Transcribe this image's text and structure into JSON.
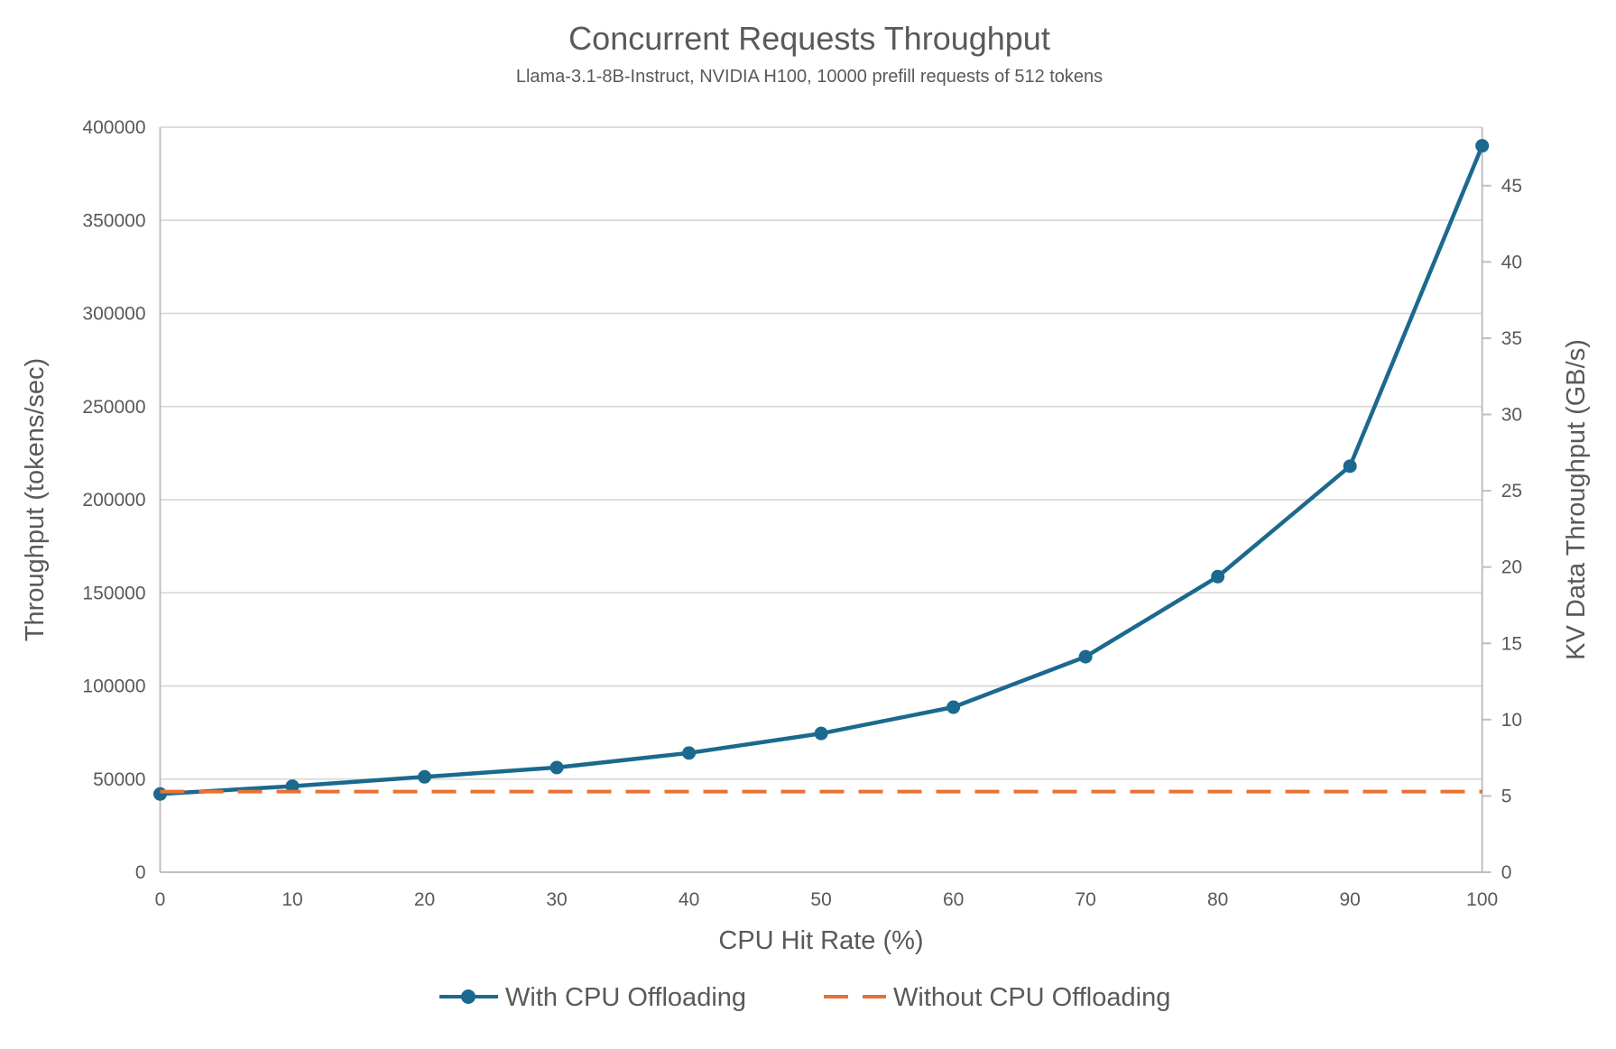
{
  "header": {
    "title": "Concurrent Requests Throughput",
    "subtitle": "Llama-3.1-8B-Instruct, NVIDIA H100, 10000 prefill requests of 512 tokens"
  },
  "chart_data": {
    "type": "line",
    "title": "Concurrent Requests Throughput",
    "subtitle": "Llama-3.1-8B-Instruct, NVIDIA H100, 10000 prefill requests of 512 tokens",
    "xlabel": "CPU Hit Rate (%)",
    "ylabel_left": "Throughput (tokens/sec)",
    "ylabel_right": "KV Data Throughput (GB/s)",
    "x": [
      0,
      10,
      20,
      30,
      40,
      50,
      60,
      70,
      80,
      90,
      100
    ],
    "xtick_labels": [
      "0",
      "10",
      "20",
      "30",
      "40",
      "50",
      "60",
      "70",
      "80",
      "90",
      "100"
    ],
    "ylim_left": [
      0,
      400000
    ],
    "yticks_left": [
      0,
      50000,
      100000,
      150000,
      200000,
      250000,
      300000,
      350000,
      400000
    ],
    "ytick_labels_left": [
      "0",
      "50000",
      "100000",
      "150000",
      "200000",
      "250000",
      "300000",
      "350000",
      "400000"
    ],
    "ylim_right": [
      0,
      48.83
    ],
    "yticks_right": [
      0,
      5,
      10,
      15,
      20,
      25,
      30,
      35,
      40,
      45
    ],
    "ytick_labels_right": [
      "0",
      "5",
      "10",
      "15",
      "20",
      "25",
      "30",
      "35",
      "40",
      "45"
    ],
    "grid": "horizontal",
    "legend_position": "bottom",
    "series": [
      {
        "name": "With CPU Offloading",
        "style": "solid-markers",
        "color": "#1B698E",
        "values": [
          42000,
          46200,
          51200,
          56200,
          64000,
          74500,
          88600,
          115700,
          158700,
          218000,
          390000
        ]
      },
      {
        "name": "Without CPU Offloading",
        "style": "dashed",
        "color": "#E97132",
        "values": [
          43300,
          43300,
          43300,
          43300,
          43300,
          43300,
          43300,
          43300,
          43300,
          43300,
          43300
        ]
      }
    ],
    "colors": {
      "grid": "#D9D9D9",
      "axis": "#BFBFBF",
      "text": "#595959",
      "series_with_offloading": "#1B698E",
      "series_without_offloading": "#E97132"
    }
  },
  "legend": {
    "items": [
      {
        "label": "With CPU Offloading"
      },
      {
        "label": "Without CPU Offloading"
      }
    ]
  }
}
